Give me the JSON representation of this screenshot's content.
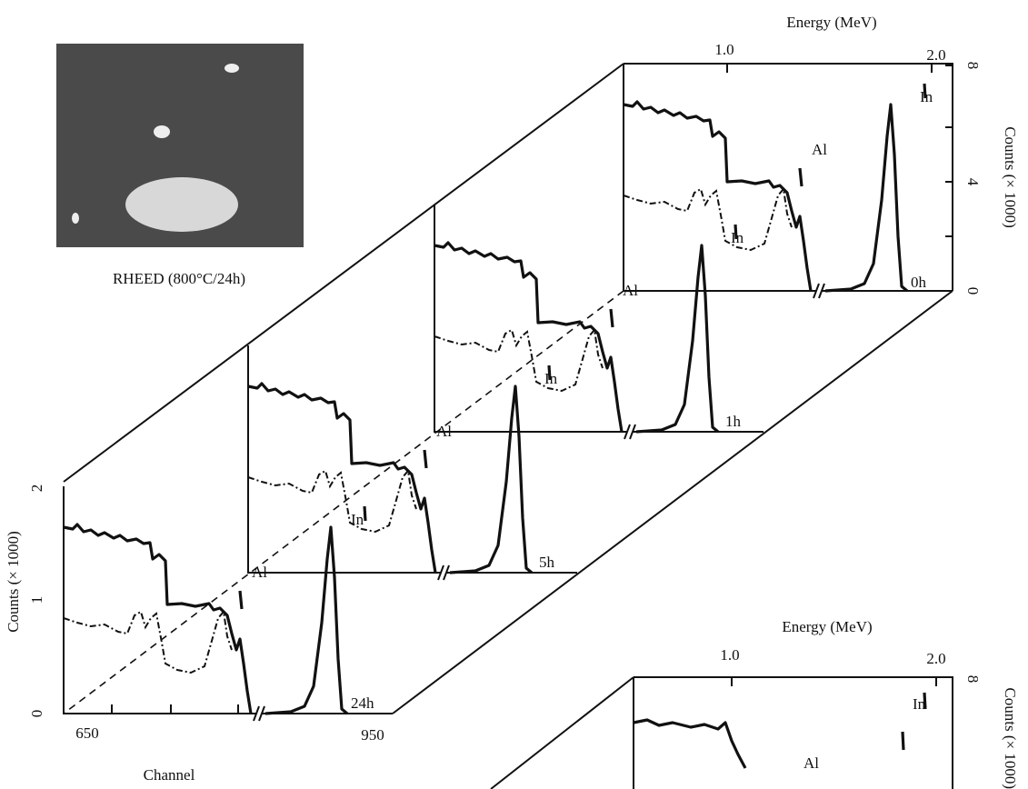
{
  "rheed": {
    "caption": "RHEED (800°C/24h)"
  },
  "top_panel": {
    "energy_label": "Energy (MeV)",
    "energy_ticks": [
      "1.0",
      "2.0"
    ],
    "counts_label": "Counts (× 1000)",
    "counts_ticks": [
      "0",
      "4",
      "8"
    ]
  },
  "front_panel": {
    "counts_label": "Counts (× 1000)",
    "counts_ticks": [
      "0",
      "1",
      "2"
    ],
    "channel_ticks": [
      "650",
      "950"
    ],
    "channel_label": "Channel"
  },
  "spectra": [
    {
      "time": "0h",
      "al_label": "Al",
      "in_label": "In"
    },
    {
      "time": "1h",
      "al_label": "Al",
      "in_label": "In"
    },
    {
      "time": "5h",
      "al_label": "Al",
      "in_label": "In"
    },
    {
      "time": "24h",
      "al_label": "Al",
      "in_label": "In"
    }
  ],
  "bottom_panel": {
    "energy_label": "Energy (MeV)",
    "energy_ticks": [
      "1.0",
      "2.0"
    ],
    "counts_label": "Counts (× 1000)",
    "counts_tick": "8",
    "in_label": "In",
    "al_label": "Al"
  }
}
